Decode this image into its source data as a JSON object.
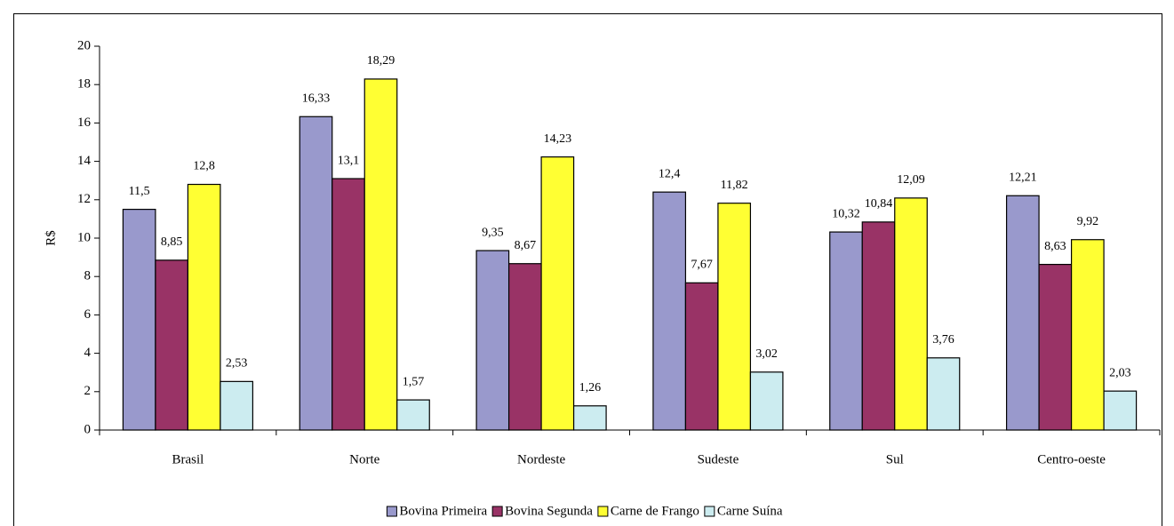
{
  "chart_data": {
    "type": "bar",
    "y_label": "R$",
    "categories": [
      "Brasil",
      "Norte",
      "Nordeste",
      "Sudeste",
      "Sul",
      "Centro-oeste"
    ],
    "series": [
      {
        "name": "Bovina Primeira",
        "color": "#9999cc",
        "values": [
          11.5,
          16.33,
          9.35,
          12.4,
          10.32,
          12.21
        ],
        "value_labels": [
          "11,5",
          "16,33",
          "9,35",
          "12,4",
          "10,32",
          "12,21"
        ]
      },
      {
        "name": "Bovina Segunda",
        "color": "#993366",
        "values": [
          8.85,
          13.1,
          8.67,
          7.67,
          10.84,
          8.63
        ],
        "value_labels": [
          "8,85",
          "13,1",
          "8,67",
          "7,67",
          "10,84",
          "8,63"
        ]
      },
      {
        "name": "Carne de Frango",
        "color": "#ffff33",
        "values": [
          12.8,
          18.29,
          14.23,
          11.82,
          12.09,
          9.92
        ],
        "value_labels": [
          "12,8",
          "18,29",
          "14,23",
          "11,82",
          "12,09",
          "9,92"
        ]
      },
      {
        "name": "Carne Suína",
        "color": "#ccecf0",
        "values": [
          2.53,
          1.57,
          1.26,
          3.02,
          3.76,
          2.03
        ],
        "value_labels": [
          "2,53",
          "1,57",
          "1,26",
          "3,02",
          "3,76",
          "2,03"
        ]
      }
    ],
    "ylim": [
      0,
      20
    ],
    "yticks": [
      0,
      2,
      4,
      6,
      8,
      10,
      12,
      14,
      16,
      18,
      20
    ],
    "grid": false,
    "legend": "bottom"
  }
}
